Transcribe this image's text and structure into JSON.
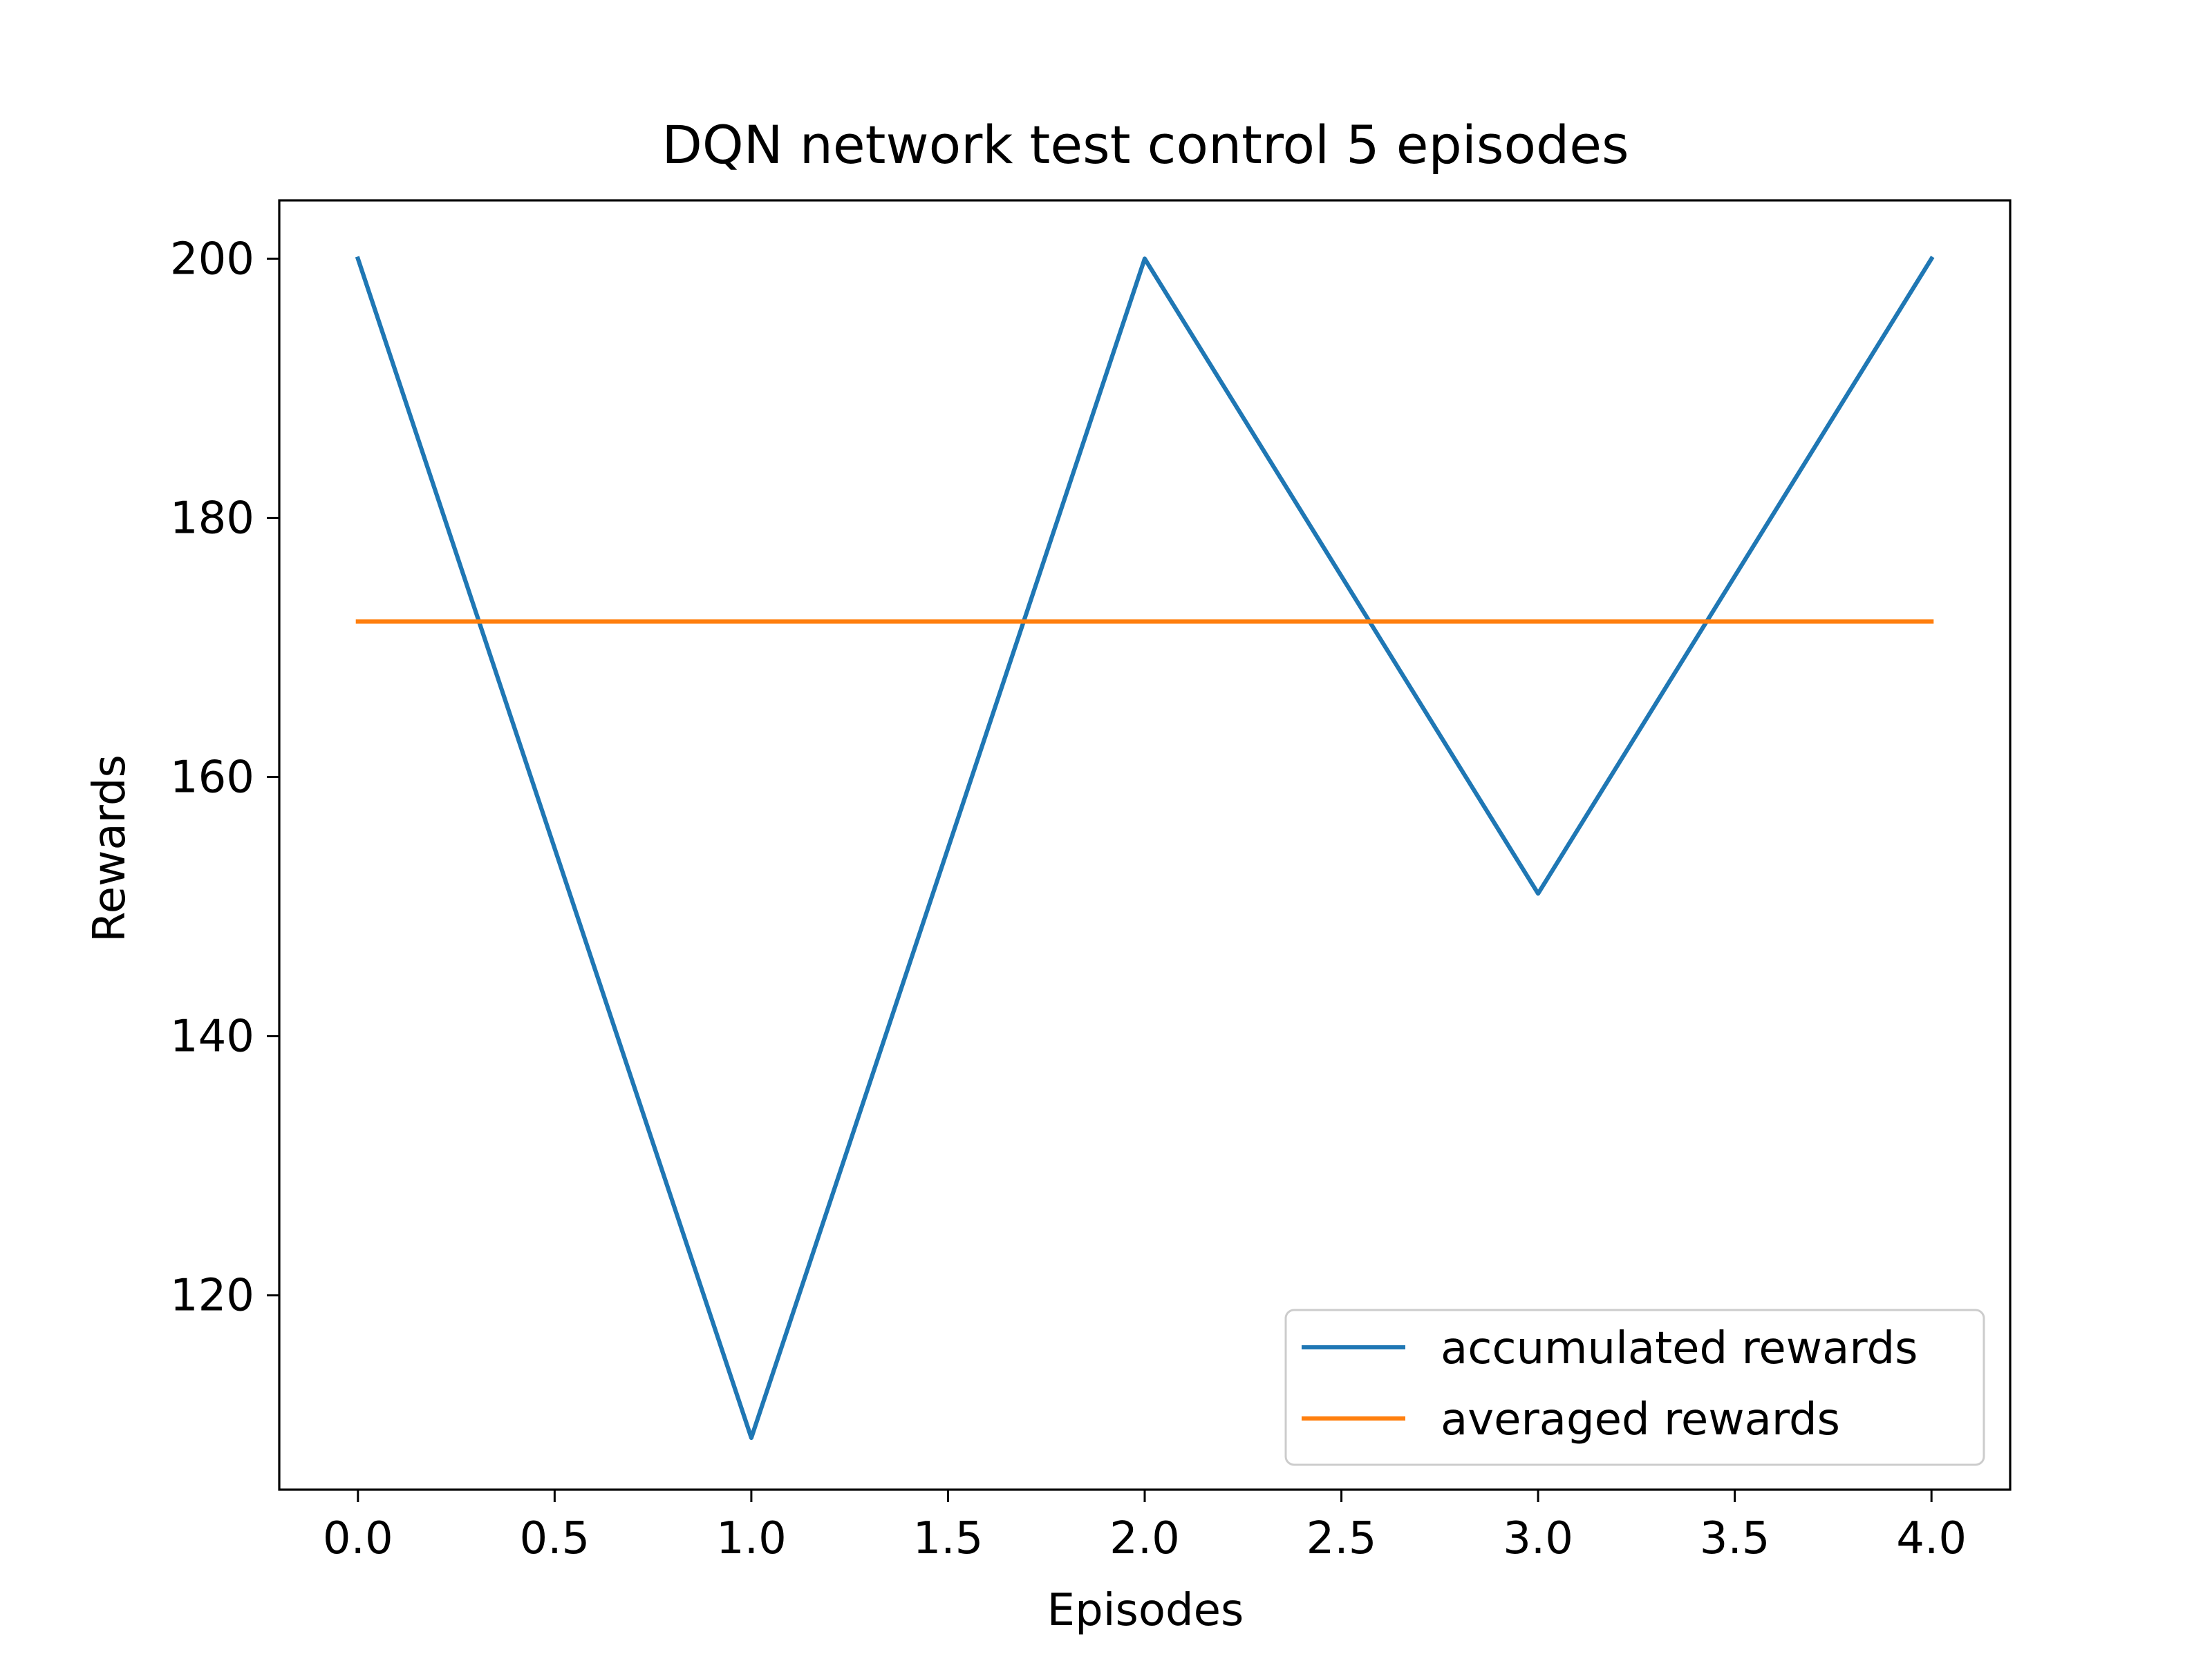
{
  "chart_data": {
    "type": "line",
    "title": "DQN network test control 5 episodes",
    "xlabel": "Episodes",
    "ylabel": "Rewards",
    "xlim": [
      -0.2,
      4.2
    ],
    "ylim": [
      105,
      204.5
    ],
    "xticks": [
      0.0,
      0.5,
      1.0,
      1.5,
      2.0,
      2.5,
      3.0,
      3.5,
      4.0
    ],
    "xtick_labels": [
      "0.0",
      "0.5",
      "1.0",
      "1.5",
      "2.0",
      "2.5",
      "3.0",
      "3.5",
      "4.0"
    ],
    "yticks": [
      120,
      140,
      160,
      180,
      200
    ],
    "ytick_labels": [
      "120",
      "140",
      "160",
      "180",
      "200"
    ],
    "grid": false,
    "legend_position": "lower-right",
    "x": [
      0,
      1,
      2,
      3,
      4
    ],
    "series": [
      {
        "name": "accumulated rewards",
        "color": "#1f77b4",
        "values": [
          200,
          109,
          200,
          151,
          200
        ]
      },
      {
        "name": "averaged rewards",
        "color": "#ff7f0e",
        "values": [
          172,
          172,
          172,
          172,
          172
        ]
      }
    ]
  }
}
